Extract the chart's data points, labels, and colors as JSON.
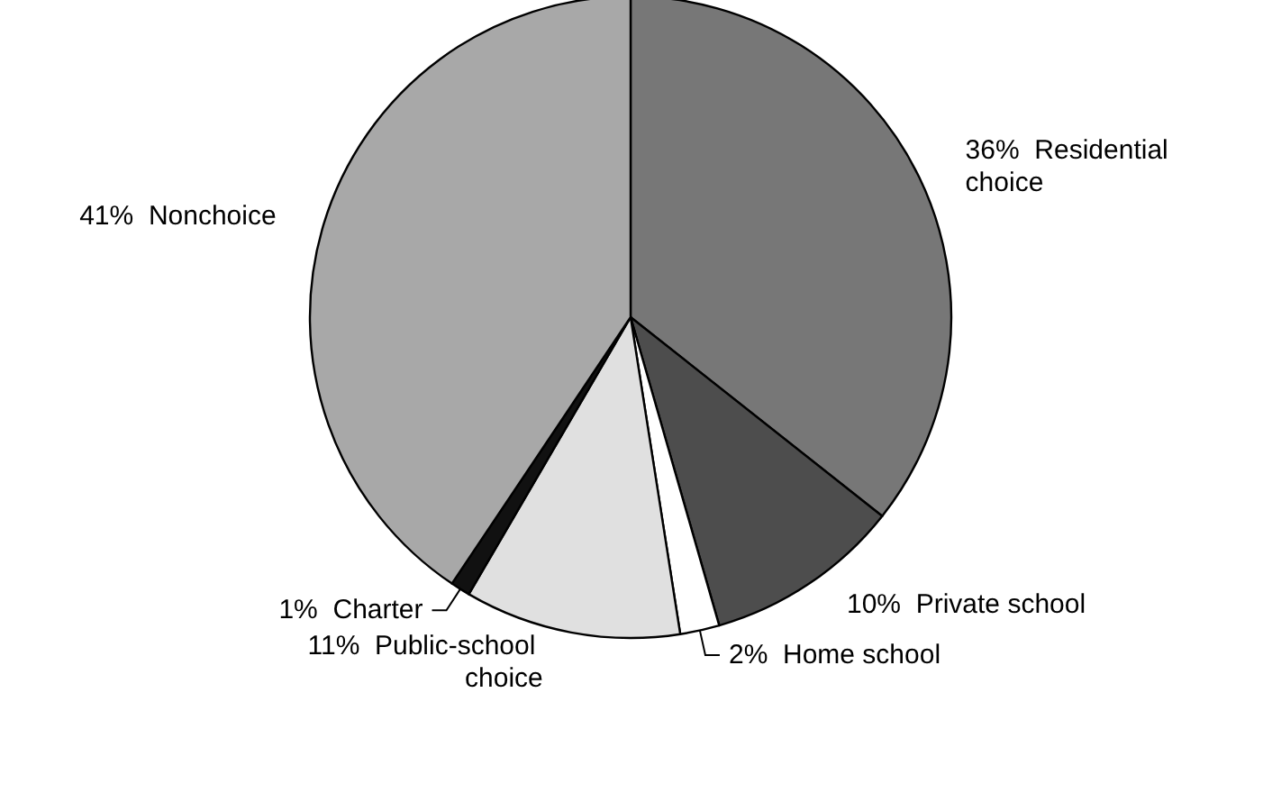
{
  "chart_data": {
    "type": "pie",
    "categories": [
      "Residential choice",
      "Private school",
      "Home school",
      "Public-school choice",
      "Charter",
      "Nonchoice"
    ],
    "values": [
      36,
      10,
      2,
      11,
      1,
      41
    ],
    "value_labels": [
      "36%",
      "10%",
      "2%",
      "11%",
      "1%",
      "41%"
    ],
    "colors": [
      "#777777",
      "#4d4d4d",
      "#ffffff",
      "#e0e0e0",
      "#111111",
      "#a8a8a8"
    ]
  }
}
